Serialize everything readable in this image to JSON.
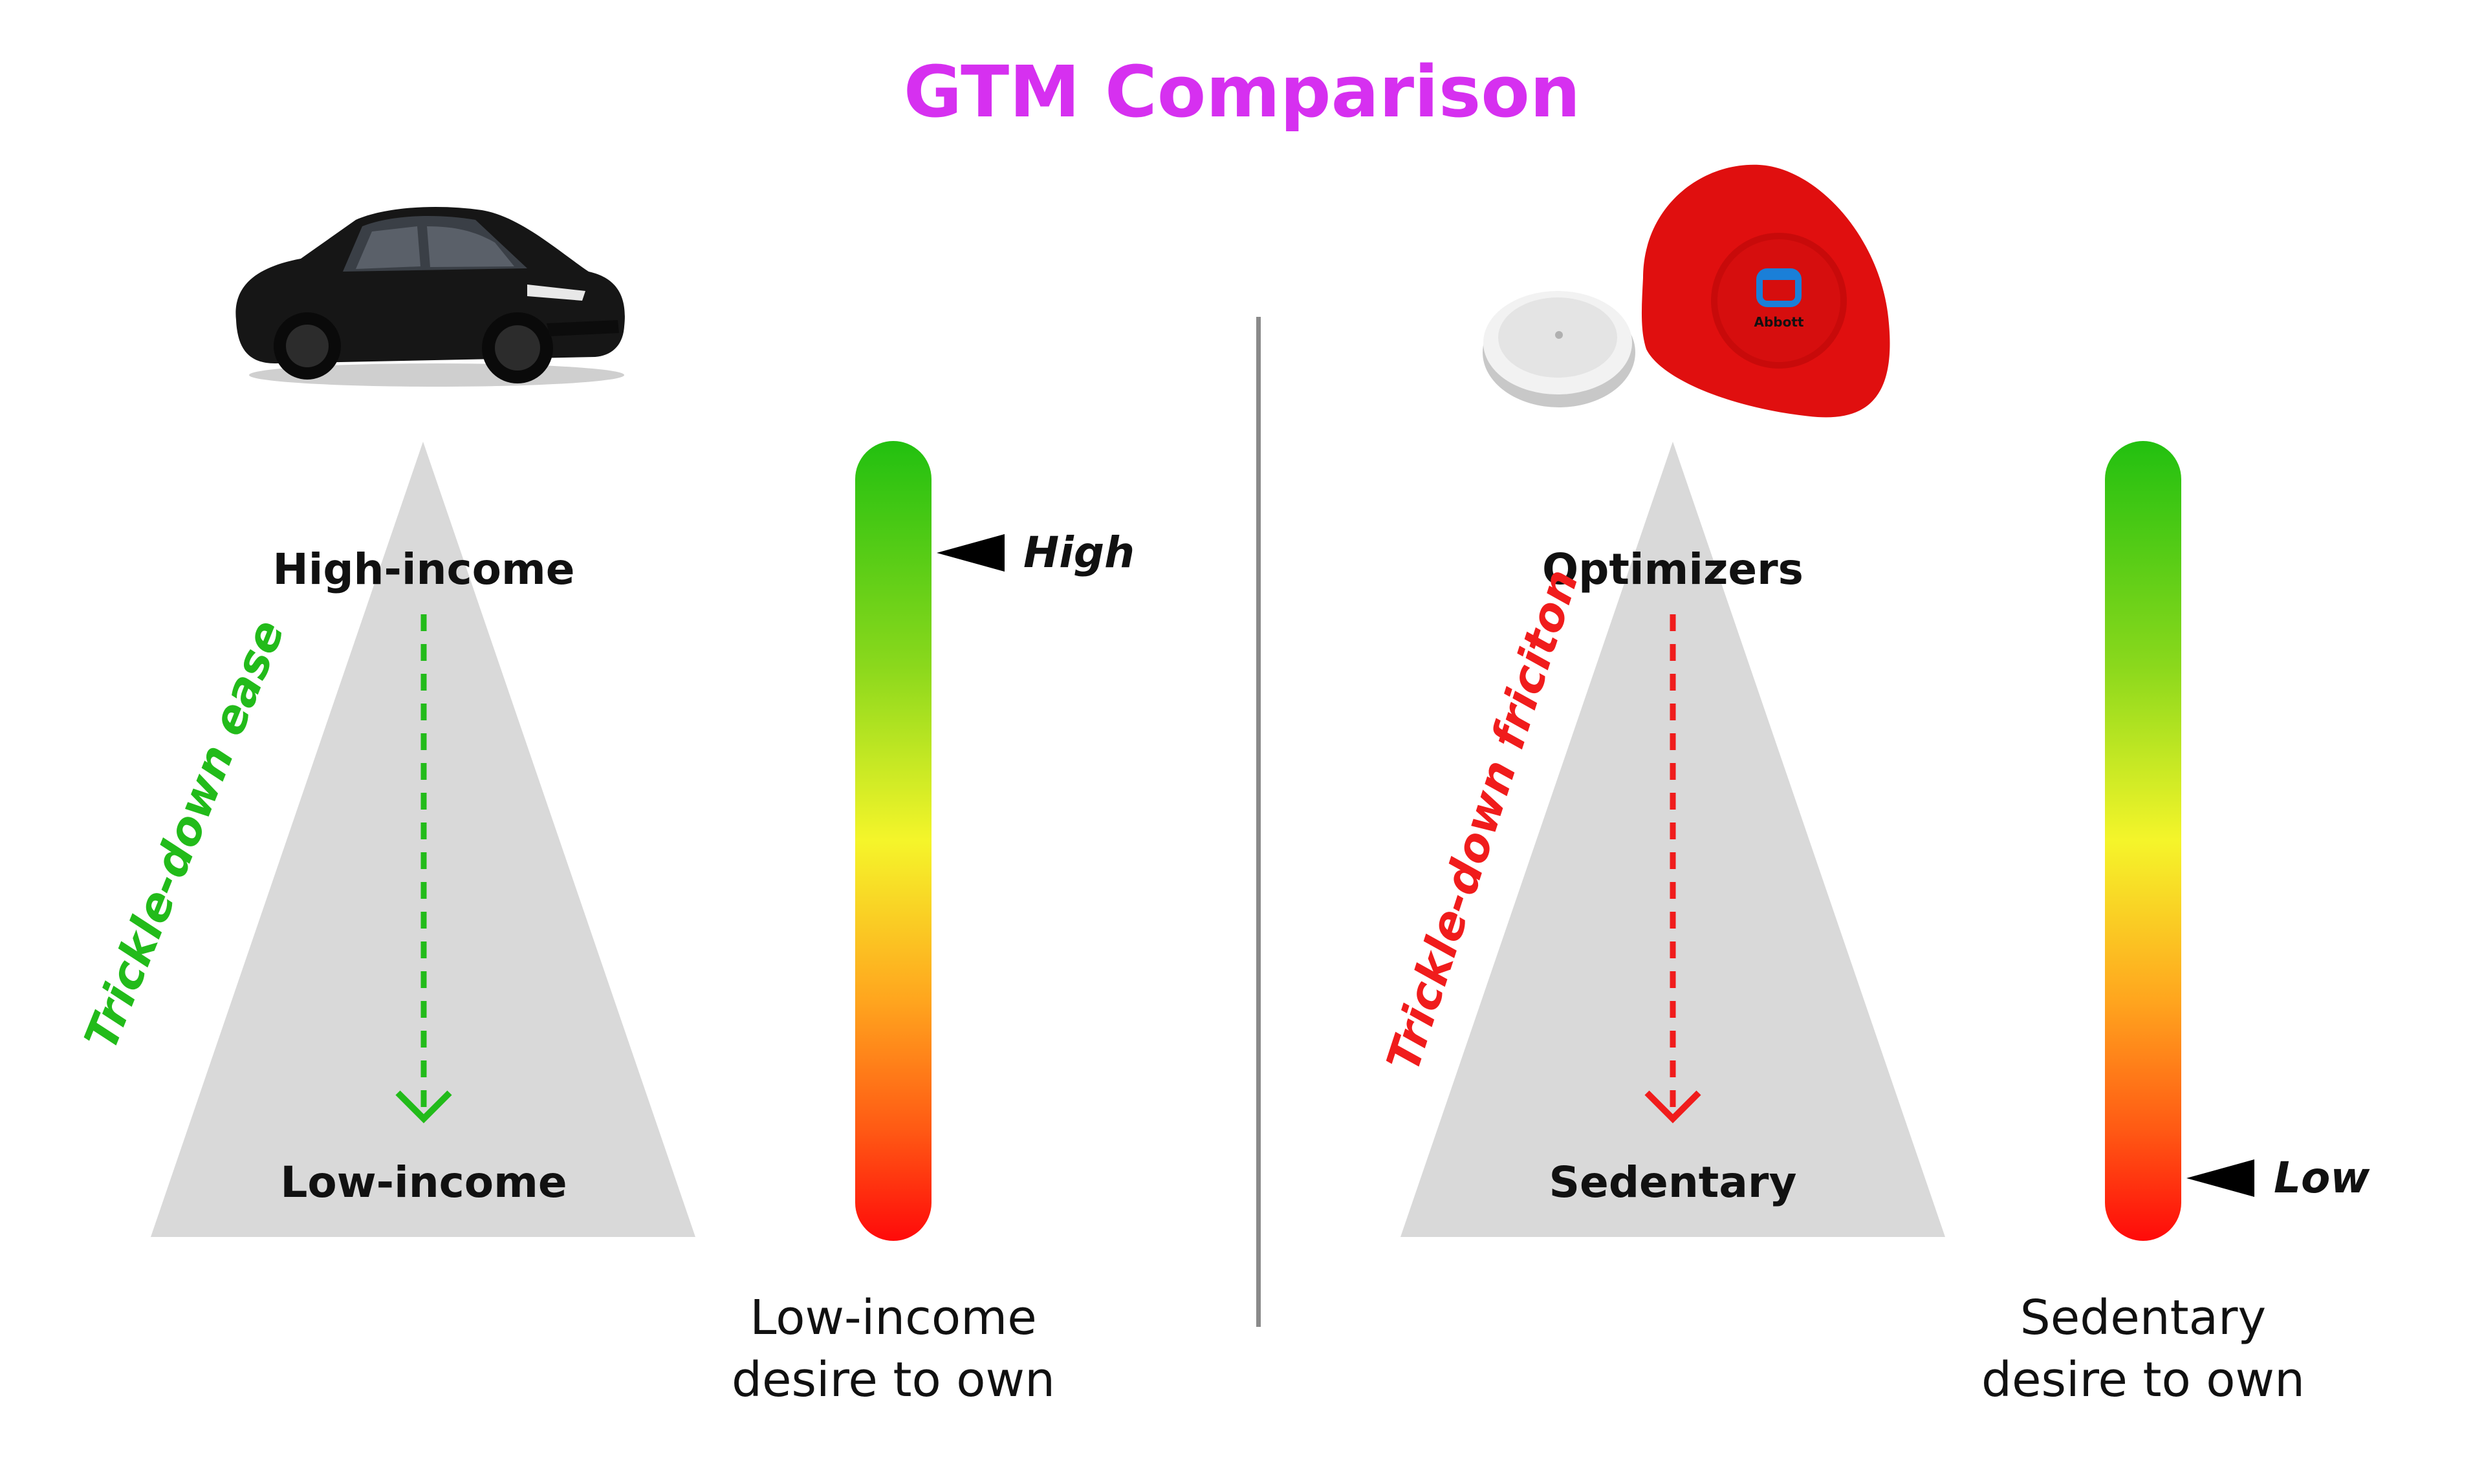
{
  "title": "GTM Comparison",
  "left_panel": {
    "top_label": "High-income",
    "bottom_label": "Low-income",
    "side_label": "Trickle-down ease",
    "side_color": "#22bb1a",
    "marker_label": "High",
    "marker_level": 0.14,
    "caption_line1": "Low-income",
    "caption_line2": "desire to own",
    "icon": "car-icon"
  },
  "right_panel": {
    "top_label": "Optimizers",
    "bottom_label": "Sedentary",
    "side_label": "Trickle-down friciton",
    "side_color": "#f01c1c",
    "marker_label": "Low",
    "marker_level": 0.9,
    "caption_line1": "Sedentary",
    "caption_line2": "desire to own",
    "icon": "glucose-sensor-icon",
    "logo_text": "Abbott"
  },
  "colors": {
    "title": "#d630f0",
    "triangle": "#d9d9d9",
    "bar_top": "#22c010",
    "bar_mid": "#f5f52a",
    "bar_bottom": "#ff0a0a"
  }
}
